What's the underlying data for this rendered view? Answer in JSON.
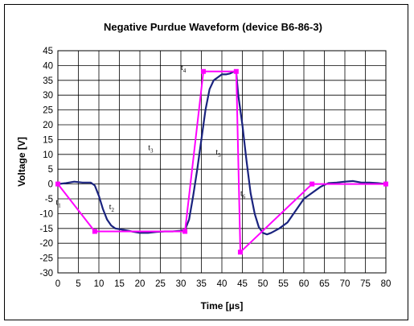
{
  "chart_data": {
    "type": "line",
    "title": "Negative Purdue Waveform (device B6-86-3)",
    "xlabel": "Time [µs]",
    "ylabel": "Voltage [V]",
    "xlim": [
      0,
      80
    ],
    "ylim": [
      -30,
      45
    ],
    "x_ticks": [
      "0",
      "5",
      "10",
      "15",
      "20",
      "25",
      "30",
      "35",
      "40",
      "45",
      "50",
      "55",
      "60",
      "65",
      "70",
      "75",
      "80"
    ],
    "y_ticks": [
      "45",
      "40",
      "35",
      "30",
      "25",
      "20",
      "15",
      "10",
      "5",
      "0",
      "-5",
      "-10",
      "-15",
      "-20",
      "-25",
      "-30"
    ],
    "grid": true,
    "series": [
      {
        "color": "#1a237e",
        "x": [
          0,
          2,
          4,
          6,
          8,
          9,
          10,
          11,
          12,
          13,
          14,
          16,
          18,
          20,
          22,
          24,
          26,
          28,
          30,
          31,
          32,
          33,
          34,
          35,
          36,
          37,
          38,
          39,
          40,
          41,
          42,
          43,
          43.5,
          44,
          45,
          46,
          47,
          48,
          49,
          50,
          51,
          52,
          54,
          56,
          58,
          60,
          62,
          64,
          65,
          66,
          68,
          70,
          72,
          74,
          76,
          78,
          80
        ],
        "y": [
          0,
          0.3,
          0.8,
          0.5,
          0.5,
          -0.5,
          -4,
          -8.5,
          -12,
          -14,
          -15,
          -15.5,
          -16,
          -16.5,
          -16.5,
          -16.2,
          -16,
          -16,
          -15.8,
          -15.5,
          -12,
          -4,
          5,
          15,
          25,
          32,
          35,
          36,
          37,
          37,
          37.3,
          38,
          37.5,
          30,
          20,
          8,
          -3,
          -10,
          -14.5,
          -16.5,
          -17,
          -16.5,
          -15,
          -13,
          -9,
          -5,
          -3,
          -1,
          -0.3,
          0.3,
          0.5,
          0.8,
          1,
          0.5,
          0.5,
          0.3,
          0
        ]
      },
      {
        "color": "#ff00ff",
        "x": [
          0,
          9,
          31,
          35.5,
          43.5,
          44.5,
          62,
          80
        ],
        "y": [
          0,
          -16,
          -16,
          38,
          38,
          -23,
          0,
          0
        ],
        "markers": true
      }
    ],
    "annotations": [
      {
        "label": "t",
        "sub": "1",
        "x": -0.5,
        "y": -7
      },
      {
        "label": "t",
        "sub": "2",
        "x": 12.5,
        "y": -8.5
      },
      {
        "label": "t",
        "sub": "3",
        "x": 22,
        "y": 11.5
      },
      {
        "label": "t",
        "sub": "4",
        "x": 30,
        "y": 38.5
      },
      {
        "label": "t",
        "sub": "5",
        "x": 38.5,
        "y": 10
      },
      {
        "label": "t",
        "sub": "6",
        "x": 44.5,
        "y": -4
      }
    ]
  }
}
